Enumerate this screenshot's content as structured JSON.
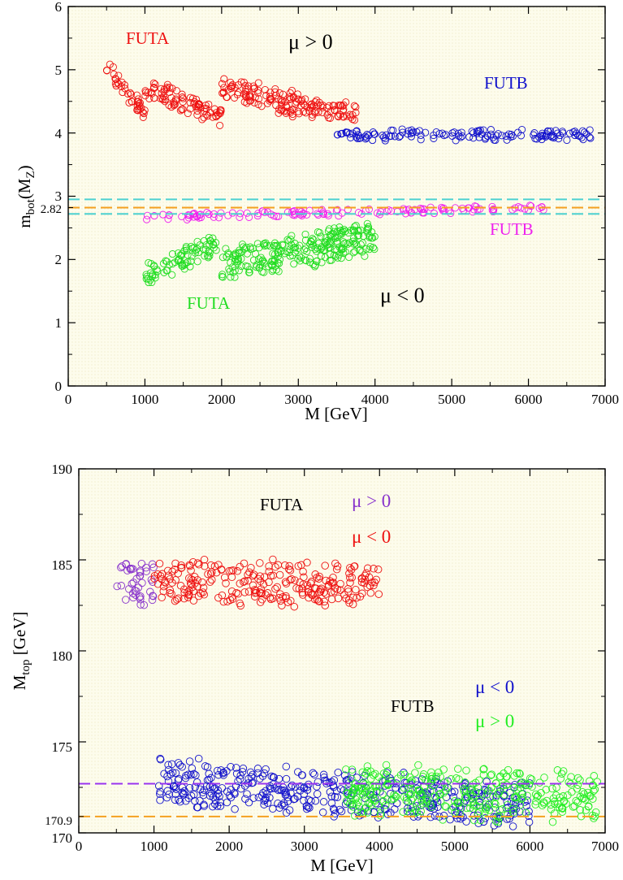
{
  "chart_data": [
    {
      "type": "scatter",
      "xlabel": "M [GeV]",
      "ylabel_main": "m",
      "ylabel_sub": "bot",
      "ylabel_tail_open": "(M",
      "ylabel_tail_sub": "Z",
      "ylabel_tail_close": ")",
      "xlim": [
        0,
        7000
      ],
      "ylim": [
        0,
        6
      ],
      "xticks": [
        "0",
        "1000",
        "2000",
        "3000",
        "4000",
        "5000",
        "6000",
        "7000"
      ],
      "yticks": [
        "0",
        "1",
        "2",
        "3",
        "4",
        "5",
        "6"
      ],
      "extra_ytick": "2.82",
      "background": "#fdfcec",
      "markers": "open circles",
      "hlines": [
        {
          "y": 2.95,
          "color": "#4dd0d0",
          "style": "dashed"
        },
        {
          "y": 2.82,
          "color": "#f4a020",
          "style": "dashed"
        },
        {
          "y": 2.72,
          "color": "#4dd0d0",
          "style": "dashed"
        }
      ],
      "annotations": [
        {
          "text": "FUTA",
          "color": "#ee1111"
        },
        {
          "text": "μ > 0",
          "color": "#000000"
        },
        {
          "text": "FUTB",
          "color": "#1111cc"
        },
        {
          "text": "FUTB",
          "color": "#ee22ee"
        },
        {
          "text": "FUTA",
          "color": "#22dd22"
        },
        {
          "text": "μ < 0",
          "color": "#000000"
        }
      ],
      "series": [
        {
          "color": "#ee1111",
          "segments": [
            {
              "x": [
                500,
                1000
              ],
              "y": [
                5.05,
                4.3
              ],
              "w": 0.18
            },
            {
              "x": [
                1000,
                2000
              ],
              "y": [
                4.75,
                4.25
              ],
              "w": 0.2
            },
            {
              "x": [
                2000,
                3000
              ],
              "y": [
                4.7,
                4.45
              ],
              "w": 0.22
            },
            {
              "x": [
                3000,
                3800
              ],
              "y": [
                4.45,
                4.3
              ],
              "w": 0.18
            }
          ]
        },
        {
          "color": "#1111cc",
          "segments": [
            {
              "x": [
                3500,
                6900
              ],
              "y": [
                3.97,
                3.97
              ],
              "w": 0.1
            }
          ]
        },
        {
          "color": "#ee22ee",
          "segments": [
            {
              "x": [
                1000,
                6200
              ],
              "y": [
                2.67,
                2.82
              ],
              "w": 0.06
            }
          ]
        },
        {
          "color": "#22dd22",
          "segments": [
            {
              "x": [
                1000,
                1950
              ],
              "y": [
                1.75,
                2.25
              ],
              "w": 0.2
            },
            {
              "x": [
                2000,
                4000
              ],
              "y": [
                1.9,
                2.35
              ],
              "w": 0.3
            }
          ]
        }
      ]
    },
    {
      "type": "scatter",
      "xlabel": "M [GeV]",
      "ylabel_main": "M",
      "ylabel_sub": "top",
      "ylabel_tail": " [GeV]",
      "xlim": [
        0,
        7000
      ],
      "ylim": [
        170,
        190
      ],
      "xticks": [
        "0",
        "1000",
        "2000",
        "3000",
        "4000",
        "5000",
        "6000",
        "7000"
      ],
      "yticks": [
        "170",
        "175",
        "180",
        "185",
        "190"
      ],
      "extra_ytick": "170.9",
      "background": "#fdfcec",
      "markers": "open circles",
      "hlines": [
        {
          "y": 172.7,
          "color": "#9933ee",
          "style": "dashed"
        },
        {
          "y": 170.9,
          "color": "#f4a020",
          "style": "dashed"
        }
      ],
      "annotations": [
        {
          "text": "FUTA",
          "color": "#000000"
        },
        {
          "text": "μ > 0",
          "color": "#8833cc"
        },
        {
          "text": "μ < 0",
          "color": "#ee1111"
        },
        {
          "text": "FUTB",
          "color": "#000000"
        },
        {
          "text": "μ < 0",
          "color": "#1111cc"
        },
        {
          "text": "μ > 0",
          "color": "#22ee22"
        }
      ],
      "series": [
        {
          "color": "#8833cc",
          "segments": [
            {
              "x": [
                500,
                1000
              ],
              "y": [
                183.7,
                183.7
              ],
              "w": 1.4
            }
          ]
        },
        {
          "color": "#ee1111",
          "segments": [
            {
              "x": [
                1000,
                4000
              ],
              "y": [
                183.7,
                183.7
              ],
              "w": 1.4
            }
          ]
        },
        {
          "color": "#1111cc",
          "segments": [
            {
              "x": [
                1050,
                1700
              ],
              "y": [
                173.1,
                172.6
              ],
              "w": 1.6
            },
            {
              "x": [
                1700,
                6000
              ],
              "y": [
                172.6,
                171.6
              ],
              "w": 1.4
            }
          ]
        },
        {
          "color": "#22ee22",
          "segments": [
            {
              "x": [
                3550,
                6900
              ],
              "y": [
                172.3,
                172.0
              ],
              "w": 1.6
            }
          ]
        }
      ]
    }
  ]
}
